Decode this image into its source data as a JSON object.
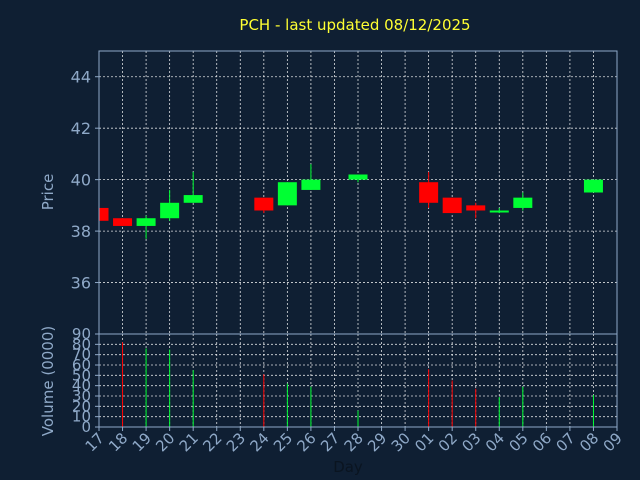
{
  "chart_data": {
    "type": "candlestick",
    "title": "PCH - last updated 08/12/2025",
    "xlabel": "Day",
    "price_panel": {
      "ylabel": "Price",
      "ylim": [
        34,
        45
      ],
      "yticks": [
        36,
        38,
        40,
        42,
        44
      ]
    },
    "volume_panel": {
      "ylabel": "Volume (0000)",
      "ylim": [
        0,
        90
      ],
      "yticks": [
        0,
        10,
        20,
        30,
        40,
        50,
        60,
        70,
        80,
        90
      ]
    },
    "x_tick_labels": [
      "17",
      "18",
      "19",
      "20",
      "21",
      "22",
      "23",
      "24",
      "25",
      "26",
      "27",
      "28",
      "29",
      "30",
      "01",
      "02",
      "03",
      "04",
      "05",
      "06",
      "07",
      "08",
      "09"
    ],
    "candles": [
      {
        "day": "17",
        "open": 38.9,
        "high": 38.9,
        "low": 38.4,
        "close": 38.4,
        "volume": 0
      },
      {
        "day": "18",
        "open": 38.5,
        "high": 38.5,
        "low": 38.2,
        "close": 38.2,
        "volume": 82
      },
      {
        "day": "19",
        "open": 38.2,
        "high": 38.6,
        "low": 37.7,
        "close": 38.5,
        "volume": 76
      },
      {
        "day": "20",
        "open": 38.5,
        "high": 39.6,
        "low": 38.4,
        "close": 39.1,
        "volume": 75
      },
      {
        "day": "21",
        "open": 39.1,
        "high": 40.3,
        "low": 39.1,
        "close": 39.4,
        "volume": 55
      },
      {
        "day": "24",
        "open": 39.3,
        "high": 39.3,
        "low": 38.7,
        "close": 38.8,
        "volume": 51
      },
      {
        "day": "25",
        "open": 39.0,
        "high": 39.9,
        "low": 39.0,
        "close": 39.9,
        "volume": 42
      },
      {
        "day": "26",
        "open": 39.6,
        "high": 40.6,
        "low": 39.6,
        "close": 40.0,
        "volume": 39
      },
      {
        "day": "28",
        "open": 40.0,
        "high": 40.2,
        "low": 39.9,
        "close": 40.2,
        "volume": 16
      },
      {
        "day": "01",
        "open": 39.9,
        "high": 40.3,
        "low": 38.9,
        "close": 39.1,
        "volume": 56
      },
      {
        "day": "02",
        "open": 39.3,
        "high": 39.3,
        "low": 38.7,
        "close": 38.7,
        "volume": 45
      },
      {
        "day": "03",
        "open": 39.0,
        "high": 39.1,
        "low": 38.5,
        "close": 38.8,
        "volume": 37
      },
      {
        "day": "04",
        "open": 38.8,
        "high": 38.9,
        "low": 38.7,
        "close": 38.8,
        "volume": 29
      },
      {
        "day": "05",
        "open": 38.9,
        "high": 39.5,
        "low": 38.8,
        "close": 39.3,
        "volume": 39
      },
      {
        "day": "08",
        "open": 39.5,
        "high": 40.0,
        "low": 39.5,
        "close": 40.0,
        "volume": 31
      }
    ],
    "colors": {
      "background": "#0f1f33",
      "up": "#00ff33",
      "down": "#ff0000",
      "axis_text": "#8fa9c8",
      "title": "#ffff33",
      "grid": "#ffffff"
    },
    "grid": true
  }
}
